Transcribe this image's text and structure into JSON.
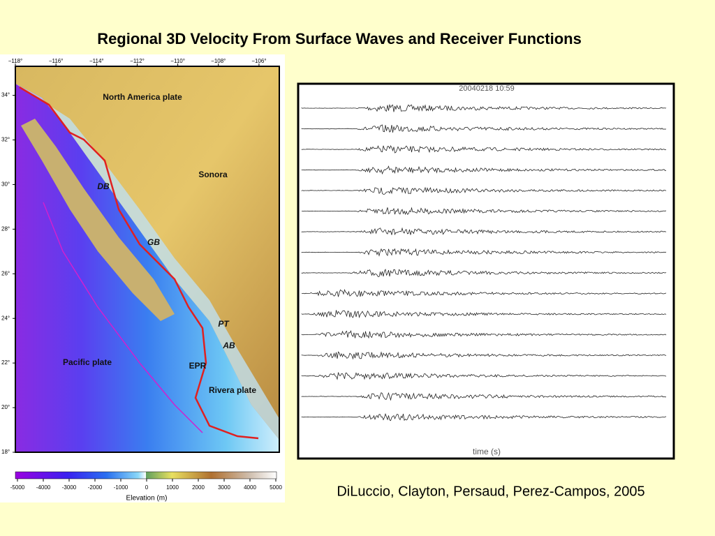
{
  "header": {
    "title": "Regional 3D Velocity From Surface Waves and Receiver Functions"
  },
  "map": {
    "labels": [
      "North America plate",
      "Sonora",
      "DB",
      "GB",
      "PT",
      "AB",
      "EPR",
      "Pacific plate",
      "Rivera plate"
    ],
    "xlim": [
      -118,
      -105
    ],
    "ylim": [
      18,
      35.3
    ],
    "xticks": [
      {
        "value": -118,
        "label": "−118°"
      },
      {
        "value": -116,
        "label": "−116°"
      },
      {
        "value": -114,
        "label": "−114°"
      },
      {
        "value": -112,
        "label": "−112°"
      },
      {
        "value": -110,
        "label": "−110°"
      },
      {
        "value": -108,
        "label": "−108°"
      },
      {
        "value": -106,
        "label": "−106°"
      }
    ],
    "yticks": [
      {
        "value": 18,
        "label": "18°"
      },
      {
        "value": 20,
        "label": "20°"
      },
      {
        "value": 22,
        "label": "22°"
      },
      {
        "value": 24,
        "label": "24°"
      },
      {
        "value": 26,
        "label": "26°"
      },
      {
        "value": 28,
        "label": "28°"
      },
      {
        "value": 30,
        "label": "30°"
      },
      {
        "value": 32,
        "label": "32°"
      },
      {
        "value": 34,
        "label": "34°"
      }
    ]
  },
  "colorbar": {
    "label": "Elevation (m)",
    "lim": [
      -5000,
      5000
    ],
    "ticks": [
      -5000,
      -4000,
      -3000,
      -2000,
      -1000,
      0,
      1000,
      2000,
      3000,
      4000,
      5000
    ]
  },
  "seismogram": {
    "header": "20040218  10:59",
    "xlabel": "time (s)"
  },
  "citation": "DiLuccio, Clayton, Persaud, Perez-Campos, 2005"
}
